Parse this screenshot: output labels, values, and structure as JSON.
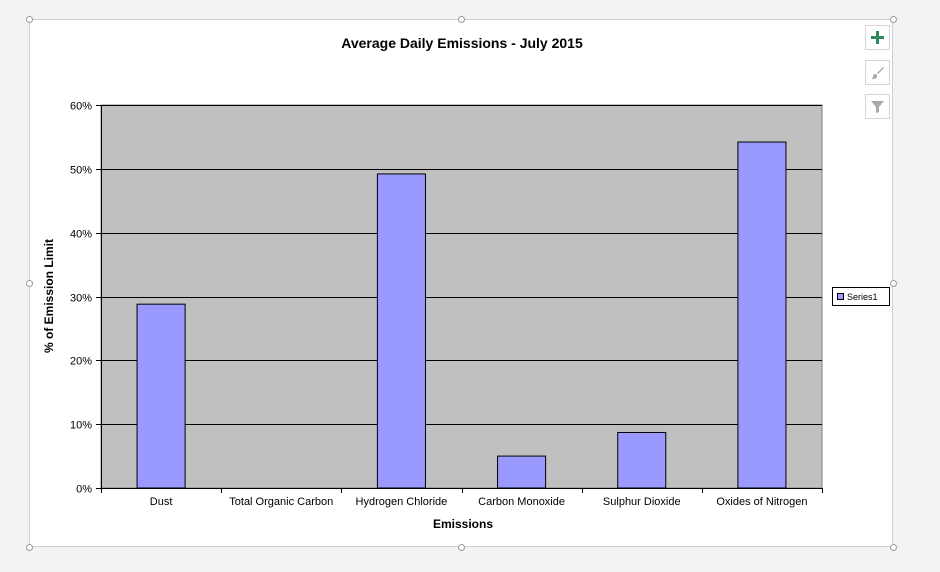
{
  "chart_data": {
    "type": "bar",
    "title": "Average Daily Emissions - July 2015",
    "xlabel": "Emissions",
    "ylabel": "% of Emission Limit",
    "categories": [
      "Dust",
      "Total Organic Carbon",
      "Hydrogen Chloride",
      "Carbon Monoxide",
      "Sulphur Dioxide",
      "Oxides of Nitrogen"
    ],
    "series": [
      {
        "name": "Series1",
        "values": [
          0.288,
          0.0,
          0.492,
          0.05,
          0.087,
          0.542
        ]
      }
    ],
    "ylim": [
      0,
      0.6
    ],
    "yticks": [
      0,
      0.1,
      0.2,
      0.3,
      0.4,
      0.5,
      0.6
    ],
    "ytick_labels": [
      "0%",
      "10%",
      "20%",
      "30%",
      "40%",
      "50%",
      "60%"
    ],
    "grid": true,
    "legend_position": "right",
    "colors": {
      "bar_fill": "#9999ff",
      "bar_stroke": "#000000",
      "plot_background": "#c0c0c0",
      "gridline": "#000000"
    }
  },
  "toolbar": {
    "add_elements_icon": "plus-icon",
    "chart_styles_icon": "brush-icon",
    "chart_filters_icon": "filter-icon"
  }
}
